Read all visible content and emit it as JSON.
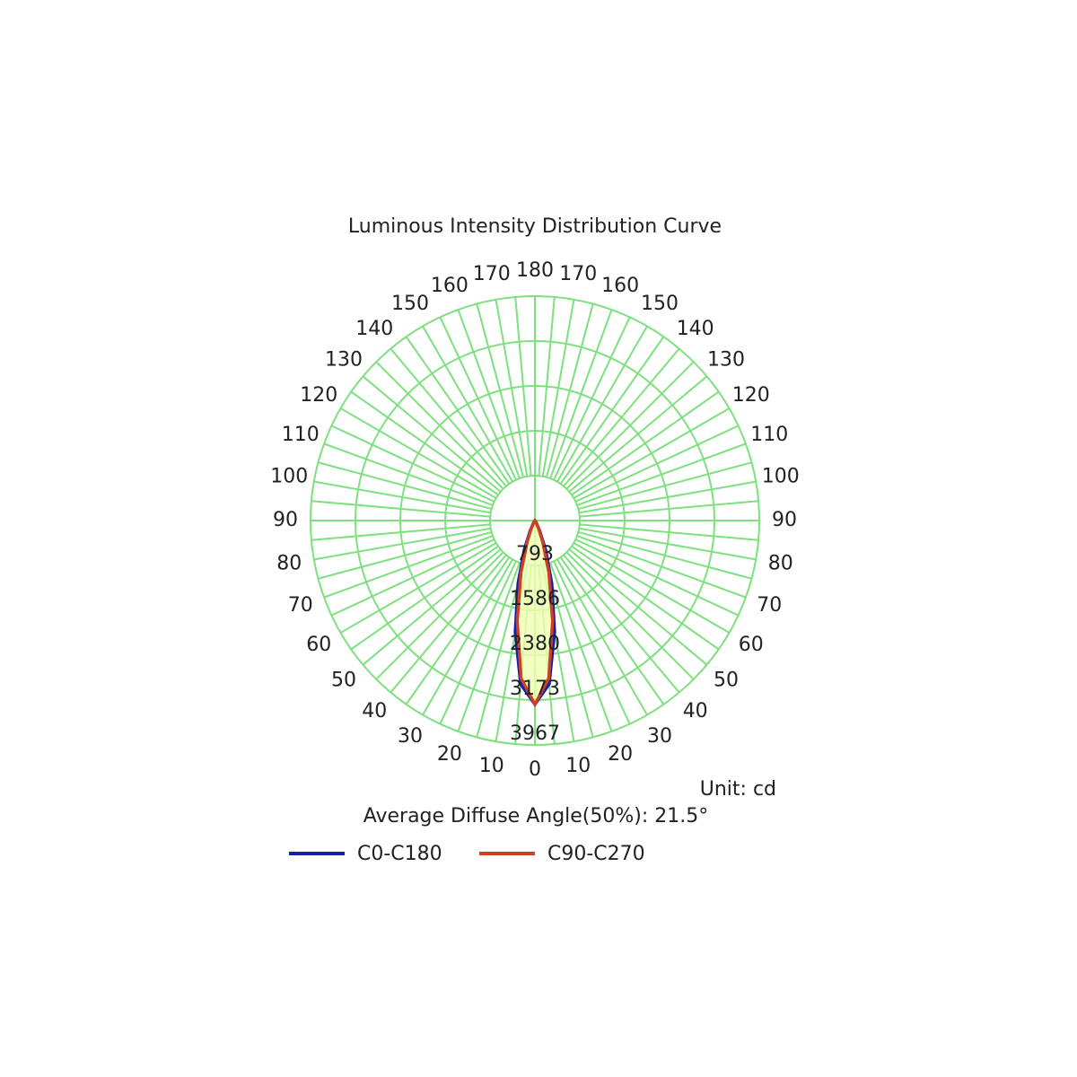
{
  "chart_data": {
    "type": "polar",
    "title": "Luminous Intensity Distribution Curve",
    "unit_label": "Unit: cd",
    "annotation": "Average Diffuse Angle(50%): 21.5°",
    "x": [
      -90,
      -60,
      -40,
      -30,
      -25,
      -20,
      -15,
      -10,
      -5,
      0,
      5,
      10,
      15,
      20,
      25,
      30,
      40,
      60,
      90
    ],
    "series": [
      {
        "name": "C0-C180",
        "color": "#1020b0",
        "values": [
          0,
          0,
          20,
          60,
          200,
          550,
          1150,
          2000,
          2900,
          3250,
          2900,
          2000,
          1150,
          550,
          200,
          60,
          20,
          0,
          0
        ]
      },
      {
        "name": "C90-C270",
        "color": "#d04020",
        "values": [
          0,
          0,
          15,
          40,
          150,
          400,
          950,
          1800,
          2800,
          3250,
          2800,
          1800,
          950,
          400,
          150,
          40,
          15,
          0,
          0
        ]
      }
    ],
    "rlim": [
      0,
      3967
    ],
    "rticks": [
      793,
      1586,
      2380,
      3173,
      3967
    ],
    "angle_ticks": [
      0,
      10,
      20,
      30,
      40,
      50,
      60,
      70,
      80,
      90,
      100,
      110,
      120,
      130,
      140,
      150,
      160,
      170,
      180
    ],
    "grid": true,
    "grid_color": "#7ee07e",
    "fill_color": "#f0ffb0"
  }
}
